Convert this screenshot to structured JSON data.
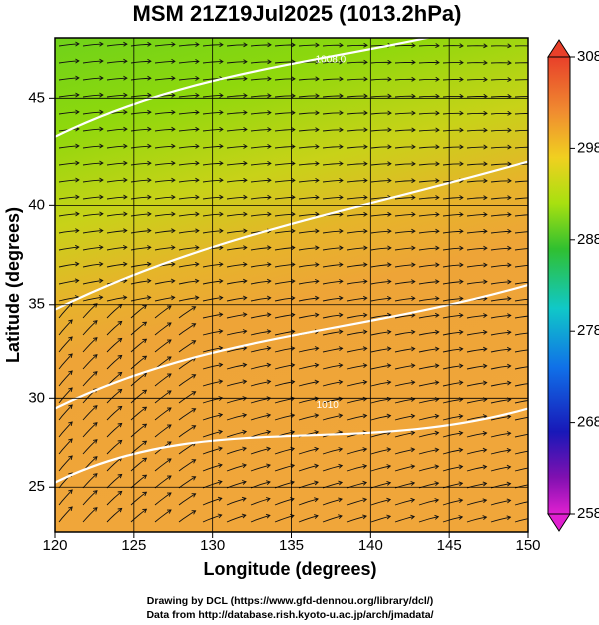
{
  "title": "MSM 21Z19Jul2025 (1013.2hPa)",
  "x_label": "Longitude (degrees)",
  "y_label": "Latitude  (degrees)",
  "xlim": [
    120,
    150
  ],
  "ylim": [
    22.4,
    47.6
  ],
  "xticks": [
    120,
    125,
    130,
    135,
    140,
    145,
    150
  ],
  "yticks": [
    25,
    30,
    35,
    40,
    45
  ],
  "contour_labels": [
    {
      "text": "1008.0",
      "lon": 137.5,
      "lat": 46.7
    },
    {
      "text": "1010",
      "lon": 137.3,
      "lat": 29.6
    }
  ],
  "colorbar": {
    "lim": [
      258,
      308
    ],
    "ticks": [
      258,
      268,
      278,
      288,
      298,
      308
    ]
  },
  "credits": [
    "Drawing by DCL (https://www.gfd-dennou.org/library/dcl/)",
    "Data from http://database.rish.kyoto-u.ac.jp/arch/jmadata/"
  ]
}
